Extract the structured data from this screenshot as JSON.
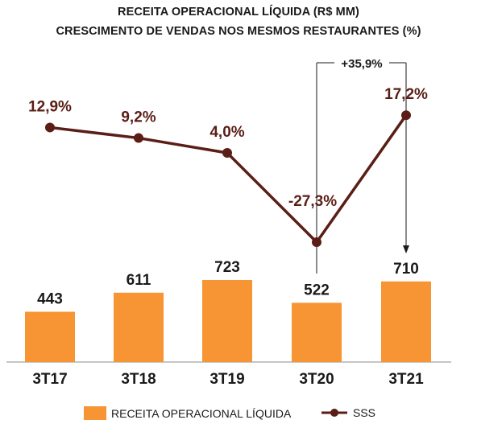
{
  "chart_data": {
    "type": "bar+line",
    "title": "RECEITA OPERACIONAL LÍQUIDA (R$ MM)",
    "subtitle": "CRESCIMENTO DE VENDAS NOS MESMOS RESTAURANTES (%)",
    "categories": [
      "3T17",
      "3T18",
      "3T19",
      "3T20",
      "3T21"
    ],
    "series": [
      {
        "name": "RECEITA OPERACIONAL LÍQUIDA",
        "type": "bar",
        "values": [
          443,
          611,
          723,
          522,
          710
        ],
        "labels": [
          "443",
          "611",
          "723",
          "522",
          "710"
        ],
        "color": "#F79433"
      },
      {
        "name": "SSS",
        "type": "line",
        "values": [
          12.9,
          9.2,
          4.0,
          -27.3,
          17.2
        ],
        "labels": [
          "12,9%",
          "9,2%",
          "4,0%",
          "-27,3%",
          "17,2%"
        ],
        "color": "#5A1E16"
      }
    ],
    "annotation": {
      "text": "+35,9%",
      "from": "3T20",
      "to": "3T21"
    },
    "legend_position": "bottom",
    "grid": false
  }
}
